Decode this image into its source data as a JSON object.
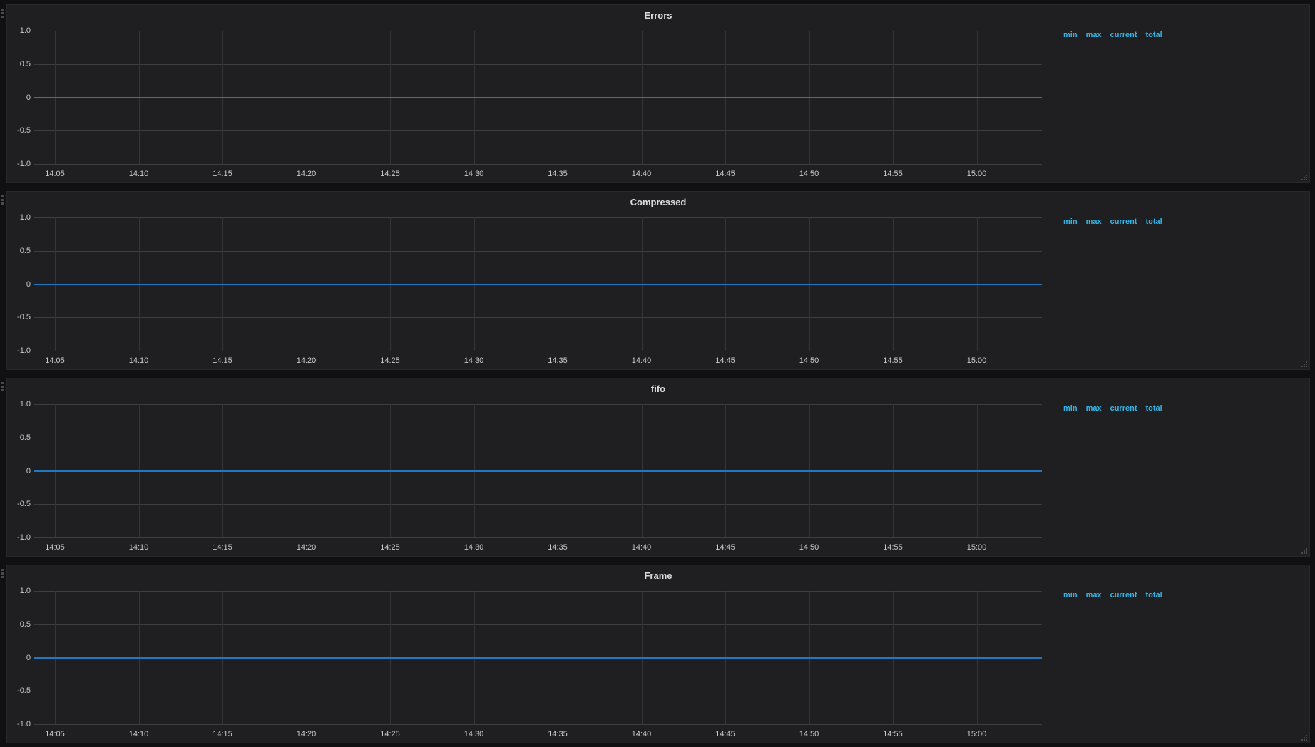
{
  "dashboard": {
    "legend_headers": [
      {
        "label": "min"
      },
      {
        "label": "max"
      },
      {
        "label": "current"
      },
      {
        "label": "total"
      }
    ]
  },
  "colors": {
    "page_bg": "#101012",
    "panel_bg": "#1f1f22",
    "panel_border": "#28282c",
    "grid_h": "#3e3e41",
    "grid_v": "#353538",
    "series_line": "#1f78c1",
    "legend_header_text": "#33b5e5",
    "axis_text": "#c9cacc",
    "title_text": "#dcdcde",
    "handle": "#4a4a4e"
  },
  "icons": {
    "row_drag": "grip-dots-vertical-icon",
    "panel_resize": "resize-corner-icon"
  },
  "chart_data": [
    {
      "type": "line",
      "title": "Errors",
      "x": [
        "14:05",
        "14:10",
        "14:15",
        "14:20",
        "14:25",
        "14:30",
        "14:35",
        "14:40",
        "14:45",
        "14:50",
        "14:55",
        "15:00"
      ],
      "y_ticks": [
        "1.0",
        "0.5",
        "0",
        "-0.5",
        "-1.0"
      ],
      "ylim": [
        -1.0,
        1.0
      ],
      "grid": true,
      "legend_position": "right",
      "series": [
        {
          "name": "",
          "color": "#1f78c1",
          "values": [
            0,
            0,
            0,
            0,
            0,
            0,
            0,
            0,
            0,
            0,
            0,
            0
          ]
        }
      ]
    },
    {
      "type": "line",
      "title": "Compressed",
      "x": [
        "14:05",
        "14:10",
        "14:15",
        "14:20",
        "14:25",
        "14:30",
        "14:35",
        "14:40",
        "14:45",
        "14:50",
        "14:55",
        "15:00"
      ],
      "y_ticks": [
        "1.0",
        "0.5",
        "0",
        "-0.5",
        "-1.0"
      ],
      "ylim": [
        -1.0,
        1.0
      ],
      "grid": true,
      "legend_position": "right",
      "series": [
        {
          "name": "",
          "color": "#1f78c1",
          "values": [
            0,
            0,
            0,
            0,
            0,
            0,
            0,
            0,
            0,
            0,
            0,
            0
          ]
        }
      ]
    },
    {
      "type": "line",
      "title": "fifo",
      "x": [
        "14:05",
        "14:10",
        "14:15",
        "14:20",
        "14:25",
        "14:30",
        "14:35",
        "14:40",
        "14:45",
        "14:50",
        "14:55",
        "15:00"
      ],
      "y_ticks": [
        "1.0",
        "0.5",
        "0",
        "-0.5",
        "-1.0"
      ],
      "ylim": [
        -1.0,
        1.0
      ],
      "grid": true,
      "legend_position": "right",
      "series": [
        {
          "name": "",
          "color": "#1f78c1",
          "values": [
            0,
            0,
            0,
            0,
            0,
            0,
            0,
            0,
            0,
            0,
            0,
            0
          ]
        }
      ]
    },
    {
      "type": "line",
      "title": "Frame",
      "x": [
        "14:05",
        "14:10",
        "14:15",
        "14:20",
        "14:25",
        "14:30",
        "14:35",
        "14:40",
        "14:45",
        "14:50",
        "14:55",
        "15:00"
      ],
      "y_ticks": [
        "1.0",
        "0.5",
        "0",
        "-0.5",
        "-1.0"
      ],
      "ylim": [
        -1.0,
        1.0
      ],
      "grid": true,
      "legend_position": "right",
      "series": [
        {
          "name": "",
          "color": "#1f78c1",
          "values": [
            0,
            0,
            0,
            0,
            0,
            0,
            0,
            0,
            0,
            0,
            0,
            0
          ]
        }
      ]
    }
  ]
}
